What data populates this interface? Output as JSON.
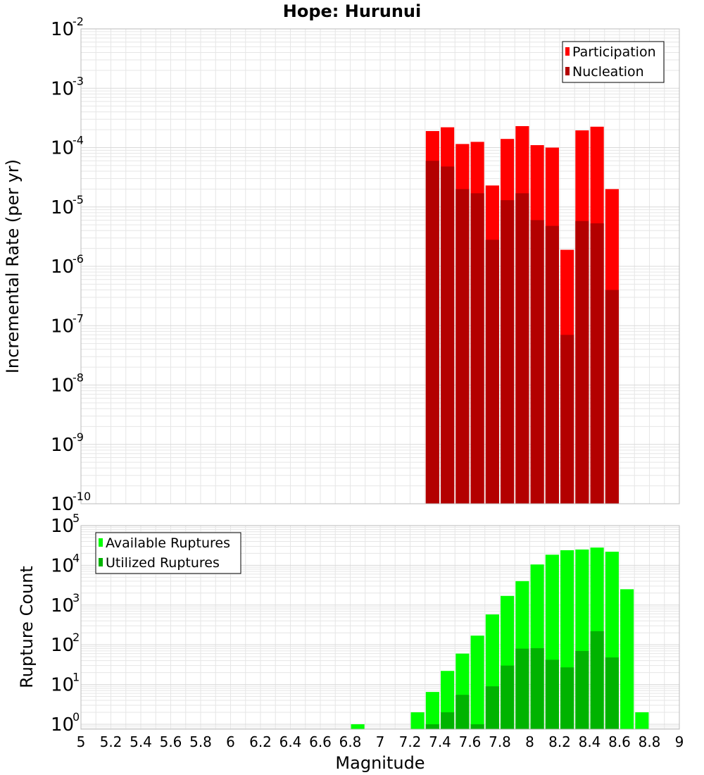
{
  "title": "Hope: Hurunui",
  "colors": {
    "participation": "#ff0000",
    "nucleation": "#b30000",
    "available": "#00ff00",
    "utilized": "#00b300",
    "grid": "#e6e6e6",
    "frame": "#bbbbbb"
  },
  "chart_data": [
    {
      "type": "bar",
      "panel": "top",
      "ylabel": "Incremental Rate (per yr)",
      "yscale": "log",
      "ylim": [
        1e-10,
        0.01
      ],
      "xlim": [
        5,
        9
      ],
      "grid": true,
      "legend": "top-right",
      "x": [
        7.35,
        7.45,
        7.55,
        7.65,
        7.75,
        7.85,
        7.95,
        8.05,
        8.15,
        8.25,
        8.35,
        8.45,
        8.55
      ],
      "series": [
        {
          "name": "Participation",
          "color": "#ff0000",
          "values": [
            0.00019,
            0.00022,
            0.000115,
            0.000125,
            2.3e-05,
            0.00014,
            0.00023,
            0.00011,
            0.0001,
            1.9e-06,
            0.000195,
            0.000225,
            2e-05
          ]
        },
        {
          "name": "Nucleation",
          "color": "#b30000",
          "values": [
            6e-05,
            4.8e-05,
            2e-05,
            1.7e-05,
            2.8e-06,
            1.3e-05,
            1.7e-05,
            6e-06,
            4.8e-06,
            7e-08,
            5.8e-06,
            5.3e-06,
            4e-07
          ]
        }
      ]
    },
    {
      "type": "bar",
      "panel": "bottom",
      "xlabel": "Magnitude",
      "ylabel": "Rupture Count",
      "yscale": "log",
      "ylim": [
        0.75,
        100000
      ],
      "xlim": [
        5,
        9
      ],
      "grid": true,
      "legend": "top-left",
      "x": [
        6.85,
        7.25,
        7.35,
        7.45,
        7.55,
        7.65,
        7.75,
        7.85,
        7.95,
        8.05,
        8.15,
        8.25,
        8.35,
        8.45,
        8.55,
        8.65,
        8.75
      ],
      "series": [
        {
          "name": "Available Ruptures",
          "color": "#00ff00",
          "values": [
            1,
            2,
            6.5,
            22,
            60,
            170,
            580,
            1700,
            4000,
            10500,
            18500,
            24000,
            25000,
            28000,
            22000,
            2500,
            2
          ]
        },
        {
          "name": "Utilized Ruptures",
          "color": "#00b300",
          "values": [
            null,
            null,
            1,
            2,
            5.5,
            1,
            9,
            30,
            80,
            82,
            42,
            27,
            70,
            220,
            48,
            null,
            null
          ]
        }
      ]
    }
  ],
  "x_ticks": [
    "5",
    "5.2",
    "5.4",
    "5.6",
    "5.8",
    "6",
    "6.2",
    "6.4",
    "6.6",
    "6.8",
    "7",
    "7.2",
    "7.4",
    "7.6",
    "7.8",
    "8",
    "8.2",
    "8.4",
    "8.6",
    "8.8",
    "9"
  ],
  "top_y_ticks": [
    {
      "base": "10",
      "exp": "-2"
    },
    {
      "base": "10",
      "exp": "-3"
    },
    {
      "base": "10",
      "exp": "-4"
    },
    {
      "base": "10",
      "exp": "-5"
    },
    {
      "base": "10",
      "exp": "-6"
    },
    {
      "base": "10",
      "exp": "-7"
    },
    {
      "base": "10",
      "exp": "-8"
    },
    {
      "base": "10",
      "exp": "-9"
    },
    {
      "base": "10",
      "exp": "-10"
    }
  ],
  "bottom_y_ticks": [
    {
      "base": "10",
      "exp": "5"
    },
    {
      "base": "10",
      "exp": "4"
    },
    {
      "base": "10",
      "exp": "3"
    },
    {
      "base": "10",
      "exp": "2"
    },
    {
      "base": "10",
      "exp": "1"
    },
    {
      "base": "10",
      "exp": "0"
    }
  ]
}
